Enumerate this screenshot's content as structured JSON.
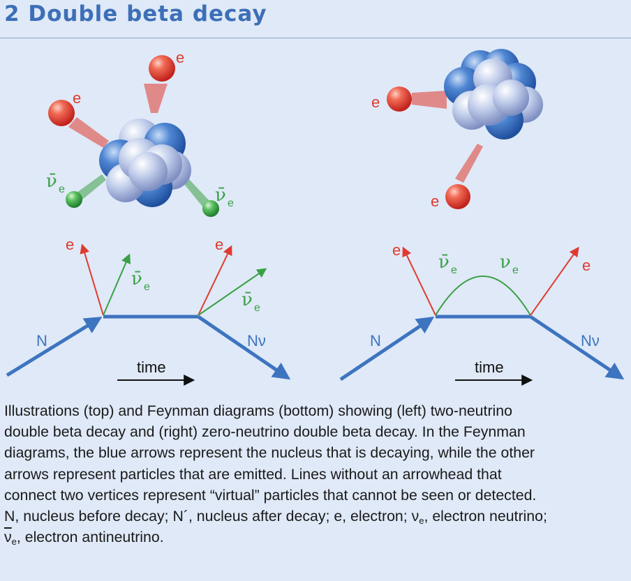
{
  "header": {
    "title": "2 Double beta decay"
  },
  "labels": {
    "electron": "e",
    "nu": "ν",
    "nu_bar": "ν̄",
    "sub_e": "e",
    "nucleus_in": "N",
    "nucleus_out": "Nν",
    "time": "time"
  },
  "caption": {
    "line1": "Illustrations (top) and Feynman diagrams (bottom) showing (left) two-neutrino",
    "line2": "double beta decay and (right) zero-neutrino double beta decay. In the Feynman",
    "line3": "diagrams, the blue arrows represent the nucleus that is decaying, while the other",
    "line4": "arrows represent particles that are emitted. Lines without an arrowhead that",
    "line5": "connect two vertices represent “virtual” particles that cannot be seen or detected.",
    "line6_a": "N, nucleus before decay; N´, nucleus after decay; e, electron; ν",
    "line6_sub1": "e",
    "line6_b": ", electron neutrino;",
    "line7_sym": "ν",
    "line7_sub": "e",
    "line7_b": ", electron antineutrino."
  },
  "colors": {
    "electron": "#e03a2f",
    "neutrino": "#3aa046",
    "nucleus": "#3d74c0",
    "nucleus_light": "#b8c6e6",
    "background": "#dfe9f7"
  }
}
